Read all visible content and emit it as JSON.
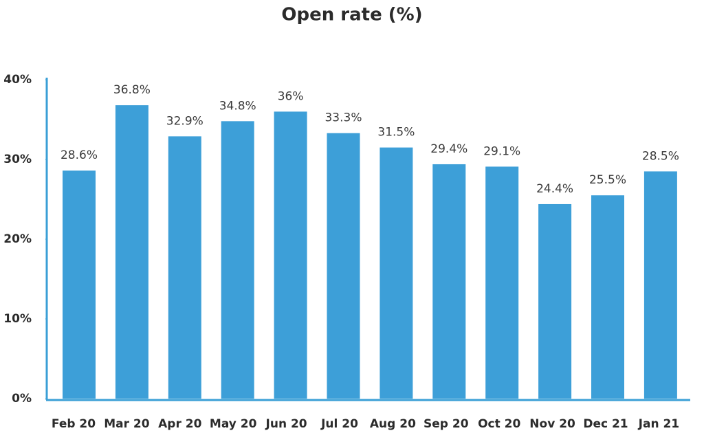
{
  "chart_data": {
    "type": "bar",
    "title": "Open rate (%)",
    "categories": [
      "Feb 20",
      "Mar 20",
      "Apr 20",
      "May 20",
      "Jun 20",
      "Jul 20",
      "Aug 20",
      "Sep 20",
      "Oct 20",
      "Nov 20",
      "Dec 21",
      "Jan 21"
    ],
    "values": [
      28.6,
      36.8,
      32.9,
      34.8,
      36,
      33.3,
      31.5,
      29.4,
      29.1,
      24.4,
      25.5,
      28.5
    ],
    "value_labels": [
      "28.6%",
      "36.8%",
      "32.9%",
      "34.8%",
      "36%",
      "33.3%",
      "31.5%",
      "29.4%",
      "29.1%",
      "24.4%",
      "25.5%",
      "28.5%"
    ],
    "color": "#3d9fd8",
    "ylim": [
      0,
      40
    ],
    "yticks": [
      {
        "value": 0,
        "label": "0%"
      },
      {
        "value": 10,
        "label": "10%"
      },
      {
        "value": 20,
        "label": "20%"
      },
      {
        "value": 30,
        "label": "30%"
      },
      {
        "value": 40,
        "label": "40%"
      }
    ],
    "grid": false
  }
}
